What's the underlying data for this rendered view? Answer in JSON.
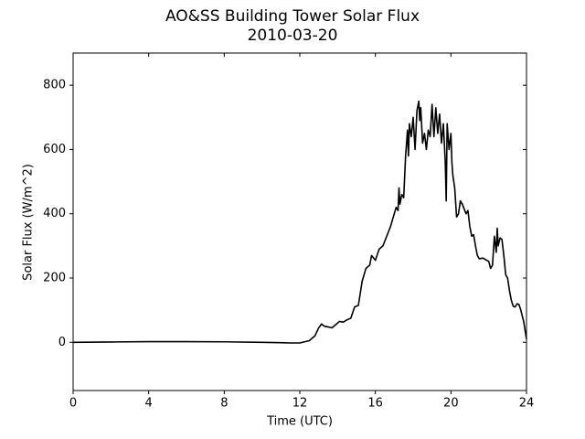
{
  "chart_data": {
    "type": "line",
    "title": "AO&SS Building Tower Solar Flux",
    "subtitle": "2010-03-20",
    "x_label": "Time (UTC)",
    "y_label": "Solar Flux (W/m^2)",
    "xlim": [
      0,
      24
    ],
    "xticks": [
      0,
      4,
      8,
      12,
      16,
      20,
      24
    ],
    "ylim": [
      -150,
      900
    ],
    "yticks": [
      0,
      200,
      400,
      600,
      800
    ],
    "grid": false,
    "series": [
      {
        "name": "Solar Flux",
        "color": "#000000",
        "x": [
          0,
          2,
          4,
          6,
          8,
          10,
          11,
          11.5,
          12,
          12.5,
          12.8,
          13.0,
          13.15,
          13.3,
          13.5,
          13.7,
          13.9,
          14.1,
          14.3,
          14.5,
          14.7,
          14.9,
          15.1,
          15.3,
          15.5,
          15.7,
          15.8,
          16.0,
          16.2,
          16.4,
          16.6,
          16.8,
          17.0,
          17.1,
          17.2,
          17.25,
          17.3,
          17.4,
          17.5,
          17.6,
          17.65,
          17.7,
          17.75,
          17.8,
          17.9,
          18.0,
          18.1,
          18.2,
          18.3,
          18.35,
          18.4,
          18.5,
          18.6,
          18.7,
          18.8,
          18.9,
          19.0,
          19.1,
          19.2,
          19.3,
          19.4,
          19.5,
          19.6,
          19.7,
          19.75,
          19.8,
          19.9,
          20.0,
          20.05,
          20.1,
          20.2,
          20.3,
          20.4,
          20.5,
          20.6,
          20.8,
          20.9,
          21.0,
          21.1,
          21.2,
          21.3,
          21.4,
          21.5,
          21.7,
          21.9,
          22.0,
          22.1,
          22.2,
          22.3,
          22.4,
          22.45,
          22.5,
          22.6,
          22.7,
          22.8,
          22.9,
          23.0,
          23.1,
          23.2,
          23.3,
          23.4,
          23.5,
          23.6,
          23.7,
          23.85,
          24.0
        ],
        "values": [
          0,
          1,
          2,
          2,
          1.5,
          0,
          -1,
          -2,
          -2,
          5,
          20,
          45,
          57,
          50,
          48,
          45,
          55,
          65,
          63,
          70,
          75,
          110,
          115,
          190,
          230,
          240,
          270,
          255,
          290,
          300,
          330,
          360,
          400,
          420,
          410,
          480,
          430,
          460,
          450,
          580,
          620,
          660,
          580,
          680,
          640,
          700,
          600,
          720,
          750,
          690,
          730,
          620,
          650,
          600,
          660,
          640,
          740,
          640,
          730,
          650,
          710,
          620,
          680,
          560,
          440,
          680,
          600,
          650,
          560,
          520,
          480,
          390,
          400,
          440,
          430,
          400,
          410,
          360,
          330,
          335,
          300,
          270,
          260,
          262,
          255,
          252,
          230,
          240,
          330,
          280,
          355,
          300,
          325,
          320,
          270,
          210,
          200,
          160,
          130,
          112,
          110,
          120,
          118,
          100,
          65,
          10
        ]
      }
    ]
  }
}
